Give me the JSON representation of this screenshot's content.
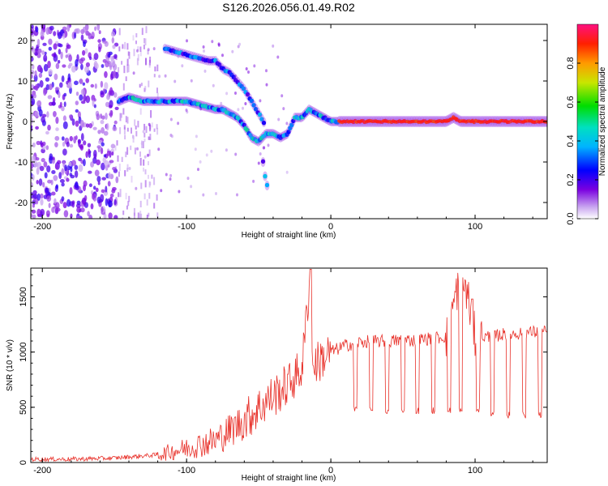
{
  "title": "S126.2026.056.01.49.R02",
  "chart_data": [
    {
      "type": "heatmap",
      "xlabel": "Height of straight line (km)",
      "ylabel": "Frequency (Hz)",
      "xlim": [
        -208,
        150
      ],
      "ylim": [
        -24,
        24
      ],
      "xticks": [
        -200,
        -100,
        0,
        100
      ],
      "yticks": [
        -20,
        -10,
        0,
        10,
        20
      ],
      "xtick_labels": [
        "-200",
        "-100",
        "0",
        "100"
      ],
      "ytick_labels": [
        "-20",
        "-10",
        "0",
        "10",
        "20"
      ],
      "colorbar": {
        "label": "Normalized spectral amplitude",
        "range": [
          0,
          1
        ],
        "ticks": [
          0.0,
          0.2,
          0.4,
          0.6,
          0.8
        ],
        "tick_labels": [
          "0.0",
          "0.2",
          "0.4",
          "0.6",
          "0.8"
        ]
      },
      "traces": [
        {
          "name": "main",
          "x": [
            -147,
            -140,
            -130,
            -120,
            -110,
            -100,
            -90,
            -80,
            -75,
            -70,
            -65,
            -60,
            -55,
            -50,
            -45,
            -40,
            -35,
            -30,
            -25,
            -20,
            -15,
            -10,
            -5,
            0,
            20,
            40,
            60,
            80,
            85,
            90,
            100,
            120,
            150
          ],
          "y": [
            5,
            6,
            5,
            5,
            5,
            5,
            4,
            3,
            3,
            2,
            1,
            -1,
            -4,
            -5,
            -3,
            -3,
            -4,
            -3,
            1,
            1,
            3,
            2,
            1,
            0,
            0,
            0,
            0,
            0,
            1,
            0,
            0,
            0,
            0
          ]
        },
        {
          "name": "upper",
          "x": [
            -115,
            -105,
            -95,
            -85,
            -80,
            -75,
            -70,
            -65,
            -60,
            -55,
            -50,
            -45
          ],
          "y": [
            18,
            17,
            16,
            15,
            15,
            13,
            12,
            10,
            8,
            5,
            2,
            -1
          ]
        },
        {
          "name": "lower",
          "x": [
            -47,
            -45,
            -43
          ],
          "y": [
            -10,
            -15,
            -17
          ]
        }
      ]
    },
    {
      "type": "line",
      "xlabel": "Height of straight line (km)",
      "ylabel": "SNR (10 * v/v)",
      "xlim": [
        -208,
        150
      ],
      "ylim": [
        0,
        1760
      ],
      "xticks": [
        -200,
        -100,
        0,
        100
      ],
      "yticks": [
        0,
        500,
        1000,
        1500
      ],
      "xtick_labels": [
        "-200",
        "-100",
        "0",
        "100"
      ],
      "ytick_labels": [
        "0",
        "500",
        "1000",
        "1500"
      ],
      "color": "#e8322b",
      "series": [
        {
          "name": "SNR",
          "x": [
            -208,
            -180,
            -150,
            -120,
            -100,
            -80,
            -60,
            -45,
            -30,
            -20,
            -14,
            -13,
            -10,
            0,
            10,
            20,
            40,
            60,
            80,
            90,
            95,
            100,
            110,
            120,
            130,
            140,
            150
          ],
          "y": [
            30,
            30,
            40,
            70,
            130,
            200,
            380,
            550,
            700,
            850,
            1750,
            900,
            900,
            1000,
            1060,
            1090,
            1100,
            1110,
            1140,
            1700,
            1500,
            1140,
            1140,
            1160,
            1170,
            1180,
            1180
          ]
        }
      ],
      "dips": [
        {
          "start": 16,
          "end": 18,
          "level": 480
        },
        {
          "start": 27,
          "end": 29,
          "level": 470
        },
        {
          "start": 38,
          "end": 40,
          "level": 470
        },
        {
          "start": 49,
          "end": 51,
          "level": 470
        },
        {
          "start": 59,
          "end": 61,
          "level": 470
        },
        {
          "start": 70,
          "end": 72,
          "level": 470
        },
        {
          "start": 81,
          "end": 83,
          "level": 470
        },
        {
          "start": 89,
          "end": 91,
          "level": 470
        },
        {
          "start": 101,
          "end": 103,
          "level": 470
        },
        {
          "start": 111,
          "end": 113,
          "level": 430
        },
        {
          "start": 122,
          "end": 124,
          "level": 430
        },
        {
          "start": 133,
          "end": 135,
          "level": 430
        },
        {
          "start": 144,
          "end": 146,
          "level": 430
        }
      ]
    }
  ]
}
